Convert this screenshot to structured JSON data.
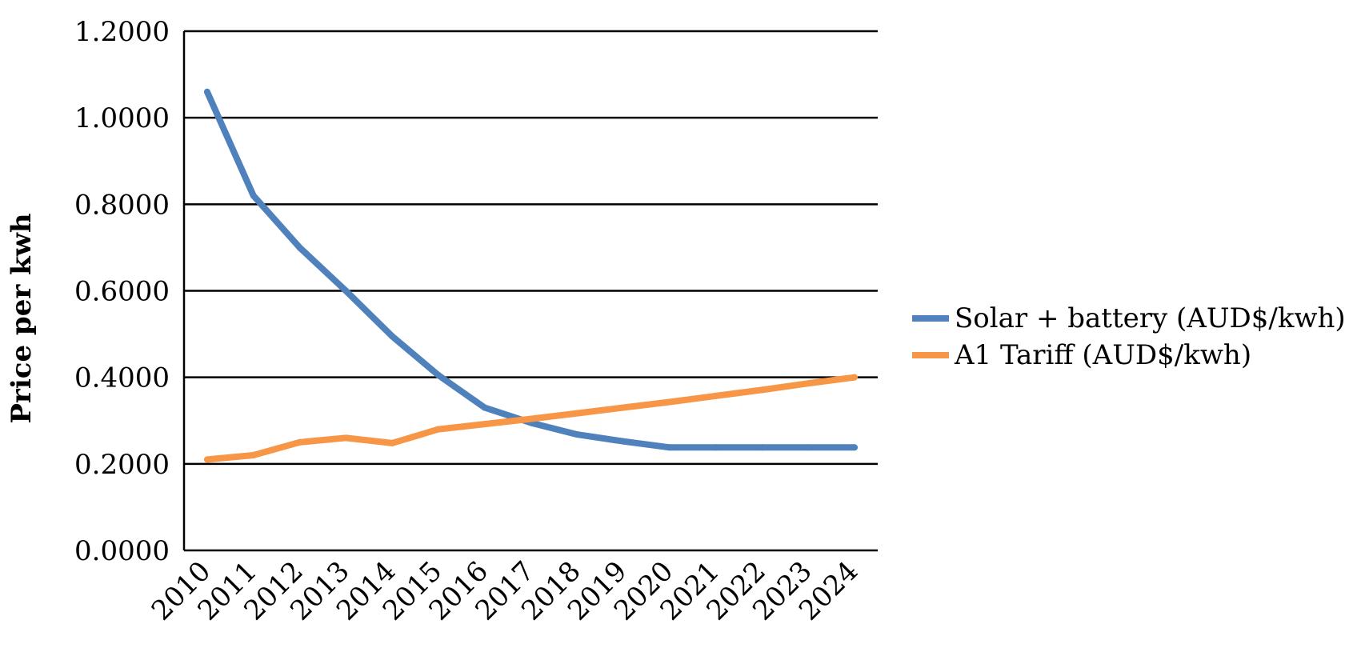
{
  "chart_data": {
    "type": "line",
    "title": "",
    "xlabel": "",
    "ylabel": "Price per kwh",
    "categories": [
      "2010",
      "2011",
      "2012",
      "2013",
      "2014",
      "2015",
      "2016",
      "2017",
      "2018",
      "2019",
      "2020",
      "2021",
      "2022",
      "2023",
      "2024"
    ],
    "ylim": [
      0,
      1.2
    ],
    "yticks": [
      "0.0000",
      "0.2000",
      "0.4000",
      "0.6000",
      "0.8000",
      "1.0000",
      "1.2000"
    ],
    "grid": true,
    "legend_position": "right",
    "series": [
      {
        "name": "Solar + battery (AUD$/kwh)",
        "color": "#4f81bd",
        "values": [
          1.06,
          0.82,
          0.7,
          0.6,
          0.495,
          0.405,
          0.33,
          0.295,
          0.268,
          0.252,
          0.238,
          0.238,
          0.238,
          0.238,
          0.238
        ]
      },
      {
        "name": "A1 Tariff (AUD$/kwh)",
        "color": "#f79646",
        "values": [
          0.21,
          0.22,
          0.25,
          0.26,
          0.248,
          0.28,
          0.292,
          0.304,
          0.317,
          0.33,
          0.343,
          0.357,
          0.371,
          0.386,
          0.4
        ]
      }
    ]
  }
}
